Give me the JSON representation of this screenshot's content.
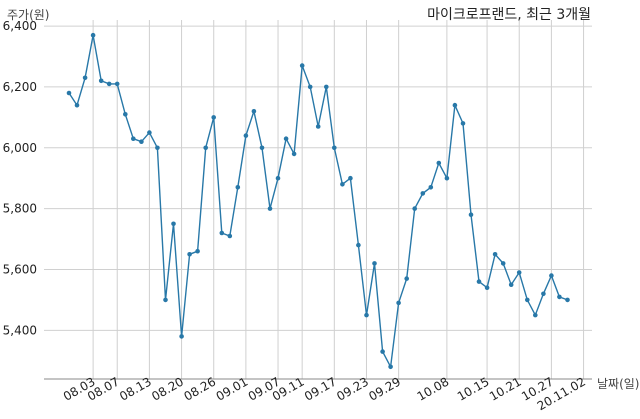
{
  "chart_data": {
    "type": "line",
    "title": "마이크로프랜드, 최근 3개월",
    "ylabel": "주가(원)",
    "xlabel": "날짜(일)",
    "ylim": [
      5240,
      6420
    ],
    "yticks": [
      5400,
      5600,
      5800,
      6000,
      6200,
      6400
    ],
    "ytick_labels": [
      "5,400",
      "5,600",
      "5,800",
      "6,000",
      "6,200",
      "6,400"
    ],
    "grid": true,
    "x_tick_labels": [
      "08.03",
      "08.07",
      "08.13",
      "08.20",
      "08.26",
      "09.01",
      "09.07",
      "09.11",
      "09.17",
      "09.23",
      "09.29",
      "10.08",
      "10.15",
      "10.21",
      "10.27",
      "20.11.02"
    ],
    "x_tick_index": [
      3,
      6,
      10,
      14,
      18,
      22,
      26,
      29,
      33,
      37,
      41,
      47,
      52,
      56,
      60,
      64
    ],
    "series": [
      {
        "color": "#2878a8",
        "values": [
          6180,
          6140,
          6230,
          6370,
          6220,
          6210,
          6210,
          6110,
          6030,
          6020,
          6050,
          6000,
          5500,
          5750,
          5380,
          5650,
          5660,
          6000,
          6100,
          5720,
          5710,
          5870,
          6040,
          6120,
          6000,
          5800,
          5900,
          6030,
          5980,
          6270,
          6200,
          6070,
          6200,
          6000,
          5880,
          5900,
          5680,
          5450,
          5620,
          5330,
          5280,
          5490,
          5570,
          5800,
          5850,
          5870,
          5950,
          5900,
          6140,
          6080,
          5780,
          5560,
          5540,
          5650,
          5620,
          5550,
          5590,
          5500,
          5450,
          5520,
          5580,
          5510,
          5500
        ]
      }
    ]
  }
}
